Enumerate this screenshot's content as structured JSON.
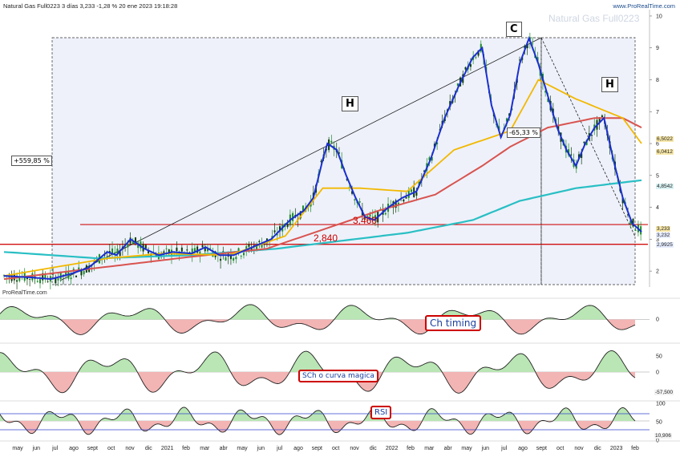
{
  "header": {
    "title": "Natural Gas Full0223 3 días 3,233 -1,28 % 20 ene 2023 19:18:28",
    "brand": "www.ProRealTime.com",
    "watermark": "Natural Gas Full0223",
    "footer_brand": "ProRealTime.com"
  },
  "annotations": {
    "pct_left": "+559,85 %",
    "pct_right": "-65,33 %",
    "label_c": "C",
    "label_h1": "H",
    "label_h2": "H",
    "level_3460": "3,460",
    "level_2840": "2,840"
  },
  "panels": {
    "timing_label": "Ch timing",
    "sch_label": "SCh o curva magica",
    "rsi_label": "RSI"
  },
  "price_tags": {
    "t1": "6,5022",
    "t2": "6,0412",
    "t3": "4,8542",
    "t4": "3,233",
    "t5": "3,232",
    "t6": "2,9925",
    "sch_val": "-57,500",
    "rsi_val": "10,906"
  },
  "chart_data": {
    "type": "line",
    "y_axis": {
      "ticks": [
        "10",
        "9",
        "8",
        "7",
        "6",
        "5",
        "4",
        "3",
        "2"
      ],
      "min": 1.5,
      "max": 10.2
    },
    "x_tick_labels": [
      "may",
      "jun",
      "jul",
      "ago",
      "sept",
      "oct",
      "nov",
      "dic",
      "2021",
      "feb",
      "mar",
      "abr",
      "may",
      "jun",
      "jul",
      "ago",
      "sept",
      "oct",
      "nov",
      "dic",
      "2022",
      "feb",
      "mar",
      "abr",
      "may",
      "jun",
      "jul",
      "ago",
      "sept",
      "oct",
      "nov",
      "dic",
      "2023",
      "feb"
    ],
    "price_series": [
      [
        0,
        1.85
      ],
      [
        6,
        1.8
      ],
      [
        10,
        1.75
      ],
      [
        14,
        1.9
      ],
      [
        18,
        2.1
      ],
      [
        22,
        2.6
      ],
      [
        24,
        2.5
      ],
      [
        27,
        3.0
      ],
      [
        30,
        2.7
      ],
      [
        33,
        2.5
      ],
      [
        36,
        2.6
      ],
      [
        40,
        2.55
      ],
      [
        43,
        2.75
      ],
      [
        46,
        2.5
      ],
      [
        49,
        2.5
      ],
      [
        53,
        2.75
      ],
      [
        57,
        3.0
      ],
      [
        61,
        3.6
      ],
      [
        64,
        3.9
      ],
      [
        66,
        4.3
      ],
      [
        68,
        5.5
      ],
      [
        69,
        6.0
      ],
      [
        71,
        5.8
      ],
      [
        73,
        5.0
      ],
      [
        75,
        4.3
      ],
      [
        77,
        3.7
      ],
      [
        79,
        3.6
      ],
      [
        82,
        4.0
      ],
      [
        85,
        4.3
      ],
      [
        88,
        4.5
      ],
      [
        91,
        5.5
      ],
      [
        94,
        6.8
      ],
      [
        97,
        7.8
      ],
      [
        100,
        8.7
      ],
      [
        102,
        9.0
      ],
      [
        104,
        7.2
      ],
      [
        106,
        6.2
      ],
      [
        108,
        6.9
      ],
      [
        110,
        8.5
      ],
      [
        112,
        9.3
      ],
      [
        114,
        8.5
      ],
      [
        116,
        7.5
      ],
      [
        118,
        6.5
      ],
      [
        120,
        5.8
      ],
      [
        122,
        5.3
      ],
      [
        124,
        6.0
      ],
      [
        126,
        6.5
      ],
      [
        128,
        6.8
      ],
      [
        130,
        5.5
      ],
      [
        132,
        4.3
      ],
      [
        134,
        3.5
      ],
      [
        136,
        3.233
      ]
    ],
    "ma_short": [
      [
        0,
        1.85
      ],
      [
        22,
        2.4
      ],
      [
        34,
        2.55
      ],
      [
        48,
        2.5
      ],
      [
        60,
        3.1
      ],
      [
        68,
        4.6
      ],
      [
        76,
        4.6
      ],
      [
        86,
        4.5
      ],
      [
        96,
        5.8
      ],
      [
        108,
        6.4
      ],
      [
        114,
        8.0
      ],
      [
        122,
        7.4
      ],
      [
        132,
        6.8
      ],
      [
        136,
        6.0
      ]
    ],
    "ma_mid": [
      [
        0,
        1.75
      ],
      [
        20,
        2.1
      ],
      [
        40,
        2.45
      ],
      [
        56,
        2.7
      ],
      [
        68,
        3.3
      ],
      [
        80,
        3.9
      ],
      [
        92,
        4.4
      ],
      [
        102,
        5.3
      ],
      [
        108,
        5.9
      ],
      [
        116,
        6.5
      ],
      [
        126,
        6.8
      ],
      [
        132,
        6.8
      ],
      [
        136,
        6.5
      ]
    ],
    "ma_long": [
      [
        0,
        2.6
      ],
      [
        20,
        2.4
      ],
      [
        40,
        2.5
      ],
      [
        58,
        2.7
      ],
      [
        72,
        2.95
      ],
      [
        86,
        3.2
      ],
      [
        100,
        3.6
      ],
      [
        110,
        4.2
      ],
      [
        122,
        4.6
      ],
      [
        136,
        4.85
      ]
    ],
    "levels": [
      3.46,
      2.84
    ]
  }
}
